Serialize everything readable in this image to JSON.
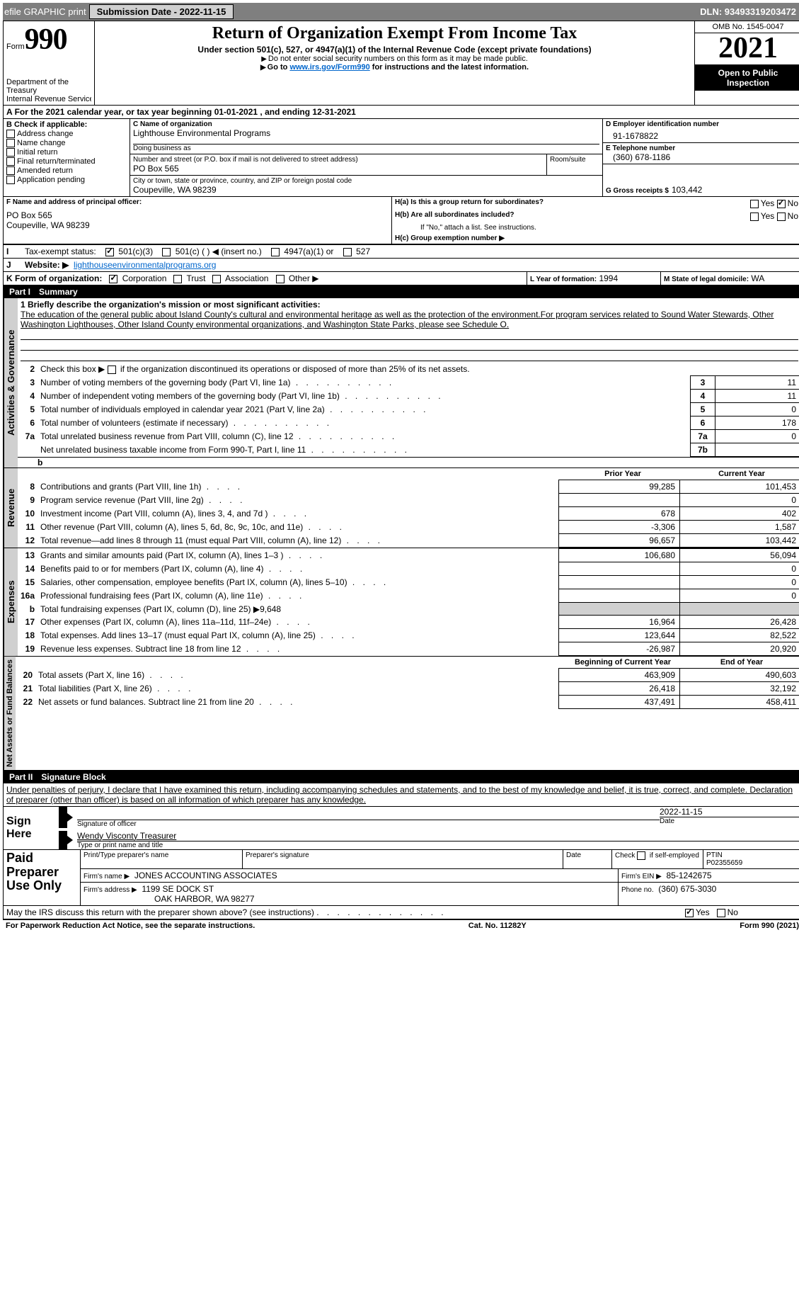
{
  "topbar": {
    "efile": "efile GRAPHIC print",
    "submission_label": "Submission Date - 2022-11-15",
    "dln_label": "DLN: 93493319203472"
  },
  "header": {
    "form_prefix": "Form",
    "form_number": "990",
    "dept": "Department of the Treasury",
    "irs": "Internal Revenue Service",
    "title": "Return of Organization Exempt From Income Tax",
    "sub": "Under section 501(c), 527, or 4947(a)(1) of the Internal Revenue Code (except private foundations)",
    "note1": "Do not enter social security numbers on this form as it may be made public.",
    "note2_pre": "Go to ",
    "note2_link": "www.irs.gov/Form990",
    "note2_post": " for instructions and the latest information.",
    "omb": "OMB No. 1545-0047",
    "year": "2021",
    "open": "Open to Public Inspection"
  },
  "period": {
    "text_pre": "For the 2021 calendar year, or tax year beginning ",
    "begin": "01-01-2021",
    "text_mid": " , and ending ",
    "end": "12-31-2021"
  },
  "sectionB": {
    "label": "B Check if applicable:",
    "items": [
      "Address change",
      "Name change",
      "Initial return",
      "Final return/terminated",
      "Amended return",
      "Application pending"
    ]
  },
  "sectionC": {
    "c_label": "C Name of organization",
    "org_name": "Lighthouse Environmental Programs",
    "dba_label": "Doing business as",
    "addr_label": "Number and street (or P.O. box if mail is not delivered to street address)",
    "room_label": "Room/suite",
    "addr": "PO Box 565",
    "city_label": "City or town, state or province, country, and ZIP or foreign postal code",
    "city": "Coupeville, WA  98239"
  },
  "sectionD": {
    "label": "D Employer identification number",
    "ein": "91-1678822"
  },
  "sectionE": {
    "label": "E Telephone number",
    "phone": "(360) 678-1186"
  },
  "sectionG": {
    "label": "G Gross receipts $",
    "val": "103,442"
  },
  "sectionF": {
    "label": "F Name and address of principal officer:",
    "line1": "PO Box 565",
    "line2": "Coupeville, WA  98239"
  },
  "sectionH": {
    "a": "H(a)  Is this a group return for subordinates?",
    "b": "H(b)  Are all subordinates included?",
    "b_note": "If \"No,\" attach a list. See instructions.",
    "c": "H(c)  Group exemption number ▶",
    "yes": "Yes",
    "no": "No"
  },
  "sectionI": {
    "label": "Tax-exempt status:",
    "opts": [
      "501(c)(3)",
      "501(c) (  ) ◀ (insert no.)",
      "4947(a)(1) or",
      "527"
    ]
  },
  "sectionJ": {
    "label": "Website: ▶",
    "val": "lighthouseenvironmentalprograms.org"
  },
  "sectionK": {
    "label": "K Form of organization:",
    "opts": [
      "Corporation",
      "Trust",
      "Association",
      "Other ▶"
    ]
  },
  "sectionL": {
    "label": "L Year of formation:",
    "val": "1994"
  },
  "sectionM": {
    "label": "M State of legal domicile:",
    "val": "WA"
  },
  "parts": {
    "p1": "Part I",
    "p1_title": "Summary",
    "p2": "Part II",
    "p2_title": "Signature Block"
  },
  "side_labels": {
    "ag": "Activities & Governance",
    "rev": "Revenue",
    "exp": "Expenses",
    "net": "Net Assets or Fund Balances"
  },
  "summary": {
    "l1_label": "1  Briefly describe the organization's mission or most significant activities:",
    "mission": "The education of the general public about Island County's cultural and environmental heritage as well as the protection of the environment.For program services related to Sound Water Stewards, Other Washington Lighthouses, Other Island County environmental organizations, and Washington State Parks, please see Schedule O.",
    "l2": "Check this box ▶        if the organization discontinued its operations or disposed of more than 25% of its net assets.",
    "lines_ag": [
      {
        "n": "3",
        "t": "Number of voting members of the governing body (Part VI, line 1a)",
        "b": "3",
        "v": "11"
      },
      {
        "n": "4",
        "t": "Number of independent voting members of the governing body (Part VI, line 1b)",
        "b": "4",
        "v": "11"
      },
      {
        "n": "5",
        "t": "Total number of individuals employed in calendar year 2021 (Part V, line 2a)",
        "b": "5",
        "v": "0"
      },
      {
        "n": "6",
        "t": "Total number of volunteers (estimate if necessary)",
        "b": "6",
        "v": "178"
      },
      {
        "n": "7a",
        "t": "Total unrelated business revenue from Part VIII, column (C), line 12",
        "b": "7a",
        "v": "0"
      },
      {
        "n": "",
        "t": "Net unrelated business taxable income from Form 990-T, Part I, line 11",
        "b": "7b",
        "v": ""
      }
    ],
    "col_prior": "Prior Year",
    "col_current": "Current Year",
    "col_begin": "Beginning of Current Year",
    "col_end": "End of Year",
    "lines_rev": [
      {
        "n": "8",
        "t": "Contributions and grants (Part VIII, line 1h)",
        "p": "99,285",
        "c": "101,453"
      },
      {
        "n": "9",
        "t": "Program service revenue (Part VIII, line 2g)",
        "p": "",
        "c": "0"
      },
      {
        "n": "10",
        "t": "Investment income (Part VIII, column (A), lines 3, 4, and 7d )",
        "p": "678",
        "c": "402"
      },
      {
        "n": "11",
        "t": "Other revenue (Part VIII, column (A), lines 5, 6d, 8c, 9c, 10c, and 11e)",
        "p": "-3,306",
        "c": "1,587"
      },
      {
        "n": "12",
        "t": "Total revenue—add lines 8 through 11 (must equal Part VIII, column (A), line 12)",
        "p": "96,657",
        "c": "103,442"
      }
    ],
    "lines_exp": [
      {
        "n": "13",
        "t": "Grants and similar amounts paid (Part IX, column (A), lines 1–3 )",
        "p": "106,680",
        "c": "56,094"
      },
      {
        "n": "14",
        "t": "Benefits paid to or for members (Part IX, column (A), line 4)",
        "p": "",
        "c": "0"
      },
      {
        "n": "15",
        "t": "Salaries, other compensation, employee benefits (Part IX, column (A), lines 5–10)",
        "p": "",
        "c": "0"
      },
      {
        "n": "16a",
        "t": "Professional fundraising fees (Part IX, column (A), line 11e)",
        "p": "",
        "c": "0"
      },
      {
        "n": "b",
        "t": "Total fundraising expenses (Part IX, column (D), line 25) ▶9,648",
        "p": "GREY",
        "c": "GREY"
      },
      {
        "n": "17",
        "t": "Other expenses (Part IX, column (A), lines 11a–11d, 11f–24e)",
        "p": "16,964",
        "c": "26,428"
      },
      {
        "n": "18",
        "t": "Total expenses. Add lines 13–17 (must equal Part IX, column (A), line 25)",
        "p": "123,644",
        "c": "82,522"
      },
      {
        "n": "19",
        "t": "Revenue less expenses. Subtract line 18 from line 12",
        "p": "-26,987",
        "c": "20,920"
      }
    ],
    "lines_net": [
      {
        "n": "20",
        "t": "Total assets (Part X, line 16)",
        "p": "463,909",
        "c": "490,603"
      },
      {
        "n": "21",
        "t": "Total liabilities (Part X, line 26)",
        "p": "26,418",
        "c": "32,192"
      },
      {
        "n": "22",
        "t": "Net assets or fund balances. Subtract line 21 from line 20",
        "p": "437,491",
        "c": "458,411"
      }
    ]
  },
  "sig": {
    "penalty": "Under penalties of perjury, I declare that I have examined this return, including accompanying schedules and statements, and to the best of my knowledge and belief, it is true, correct, and complete. Declaration of preparer (other than officer) is based on all information of which preparer has any knowledge.",
    "sign_here": "Sign Here",
    "sig_officer": "Signature of officer",
    "date": "Date",
    "sig_date": "2022-11-15",
    "name": "Wendy Visconty  Treasurer",
    "name_label": "Type or print name and title",
    "paid": "Paid Preparer Use Only",
    "prep_name_label": "Print/Type preparer's name",
    "prep_sig_label": "Preparer's signature",
    "prep_date_label": "Date",
    "check_self": "Check         if self-employed",
    "ptin_label": "PTIN",
    "ptin": "P02355659",
    "firm_name_label": "Firm's name   ▶",
    "firm_name": "JONES ACCOUNTING ASSOCIATES",
    "firm_ein_label": "Firm's EIN ▶",
    "firm_ein": "85-1242675",
    "firm_addr_label": "Firm's address ▶",
    "firm_addr1": "1199 SE DOCK ST",
    "firm_addr2": "OAK HARBOR, WA  98277",
    "firm_phone_label": "Phone no.",
    "firm_phone": "(360) 675-3030",
    "discuss": "May the IRS discuss this return with the preparer shown above? (see instructions)",
    "paperwork": "For Paperwork Reduction Act Notice, see the separate instructions.",
    "cat": "Cat. No. 11282Y",
    "form_foot": "Form 990 (2021)"
  }
}
